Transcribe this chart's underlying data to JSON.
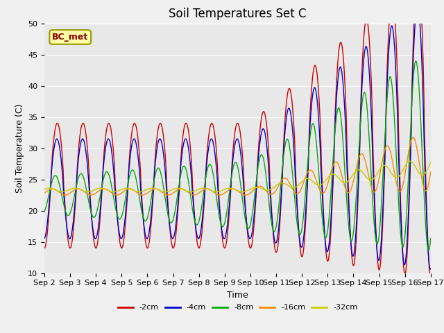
{
  "title": "Soil Temperatures Set C",
  "xlabel": "Time",
  "ylabel": "Soil Temperature (C)",
  "ylim": [
    10,
    50
  ],
  "xlim": [
    0,
    15
  ],
  "xtick_labels": [
    "Sep 2",
    "Sep 3",
    "Sep 4",
    "Sep 5",
    "Sep 6",
    "Sep 7",
    "Sep 8",
    "Sep 9",
    "Sep 10",
    "Sep 11",
    "Sep 12",
    "Sep 13",
    "Sep 14",
    "Sep 15",
    "Sep 16",
    "Sep 17"
  ],
  "ytick_vals": [
    10,
    15,
    20,
    25,
    30,
    35,
    40,
    45,
    50
  ],
  "series_labels": [
    "-2cm",
    "-4cm",
    "-8cm",
    "-16cm",
    "-32cm"
  ],
  "series_colors": [
    "#cc0000",
    "#0000cc",
    "#00aa00",
    "#ff8800",
    "#cccc00"
  ],
  "annotation_text": "BC_met",
  "bg_color": "#e8e8e8",
  "fig_color": "#f0f0f0"
}
